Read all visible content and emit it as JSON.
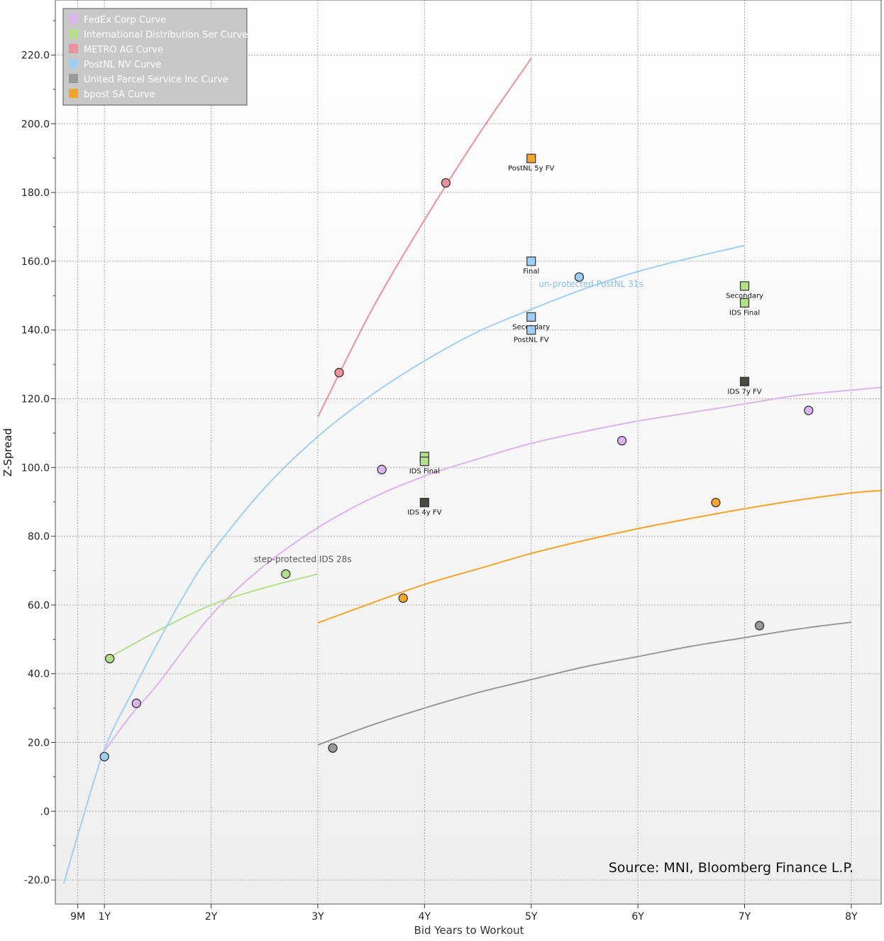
{
  "chart_data": {
    "type": "scatter",
    "xlabel": "Bid Years to Workout",
    "ylabel": "Z-Spread",
    "xlim": [
      0.54,
      8.28
    ],
    "ylim": [
      -27,
      236
    ],
    "x_ticks": [
      {
        "value": 0.75,
        "label": "9M"
      },
      {
        "value": 1,
        "label": "1Y"
      },
      {
        "value": 2,
        "label": "2Y"
      },
      {
        "value": 3,
        "label": "3Y"
      },
      {
        "value": 4,
        "label": "4Y"
      },
      {
        "value": 5,
        "label": "5Y"
      },
      {
        "value": 6,
        "label": "6Y"
      },
      {
        "value": 7,
        "label": "7Y"
      },
      {
        "value": 8,
        "label": "8Y"
      }
    ],
    "y_ticks": [
      {
        "value": -20,
        "label": "-20.0"
      },
      {
        "value": 0,
        "label": ".0"
      },
      {
        "value": 20,
        "label": "20.0"
      },
      {
        "value": 40,
        "label": "40.0"
      },
      {
        "value": 60,
        "label": "60.0"
      },
      {
        "value": 80,
        "label": "80.0"
      },
      {
        "value": 100,
        "label": "100.0"
      },
      {
        "value": 120,
        "label": "120.0"
      },
      {
        "value": 140,
        "label": "140.0"
      },
      {
        "value": 160,
        "label": "160.0"
      },
      {
        "value": 180,
        "label": "180.0"
      },
      {
        "value": 200,
        "label": "200.0"
      },
      {
        "value": 220,
        "label": "220.0"
      }
    ],
    "legend_position": "top-left",
    "series": [
      {
        "name": "FedEx Corp Curve",
        "color": "#dcb4f0",
        "points": [
          [
            1.3,
            31.4
          ],
          [
            3.6,
            99.4
          ],
          [
            5.85,
            107.8
          ],
          [
            7.6,
            116.6
          ]
        ],
        "curve": [
          [
            1.0,
            17.5
          ],
          [
            1.25,
            28
          ],
          [
            1.5,
            37
          ],
          [
            2.0,
            57
          ],
          [
            2.5,
            71.5
          ],
          [
            3.0,
            82.5
          ],
          [
            3.5,
            91
          ],
          [
            4.0,
            97.5
          ],
          [
            4.5,
            102.5
          ],
          [
            5.0,
            107
          ],
          [
            5.5,
            110.5
          ],
          [
            6.0,
            113.5
          ],
          [
            6.5,
            116
          ],
          [
            7.0,
            118.5
          ],
          [
            7.5,
            121
          ],
          [
            8.0,
            122.5
          ],
          [
            8.28,
            123.3
          ]
        ]
      },
      {
        "name": "International Distribution Ser Curve",
        "color": "#b4e08a",
        "points": [
          [
            1.05,
            44.4
          ],
          [
            2.7,
            69.0
          ]
        ],
        "curve": [
          [
            1.05,
            44.8
          ],
          [
            1.5,
            52.5
          ],
          [
            2.0,
            60
          ],
          [
            2.5,
            65
          ],
          [
            3.0,
            69
          ]
        ]
      },
      {
        "name": "METRO AG Curve",
        "color": "#f0909a",
        "points": [
          [
            3.2,
            127.6
          ],
          [
            4.2,
            182.8
          ]
        ],
        "curve": [
          [
            3.0,
            114.7
          ],
          [
            3.5,
            145.5
          ],
          [
            4.0,
            172
          ],
          [
            4.5,
            196.5
          ],
          [
            5.0,
            219
          ]
        ]
      },
      {
        "name": "PostNL NV Curve",
        "color": "#a0cff5",
        "points": [
          [
            1.0,
            15.9
          ],
          [
            5.45,
            155.4
          ]
        ],
        "curve": [
          [
            0.62,
            -21
          ],
          [
            0.75,
            -7
          ],
          [
            1.0,
            18
          ],
          [
            1.25,
            34
          ],
          [
            1.5,
            49
          ],
          [
            1.75,
            63
          ],
          [
            2.0,
            75
          ],
          [
            2.5,
            94
          ],
          [
            3.0,
            109
          ],
          [
            3.5,
            121
          ],
          [
            4.0,
            131
          ],
          [
            4.5,
            139.5
          ],
          [
            5.0,
            146
          ],
          [
            5.5,
            152
          ],
          [
            6.0,
            157
          ],
          [
            6.5,
            161
          ],
          [
            7.0,
            164.6
          ]
        ]
      },
      {
        "name": "United Parcel Service Inc Curve",
        "color": "#999999",
        "points": [
          [
            3.14,
            18.4
          ],
          [
            7.14,
            54.0
          ]
        ],
        "curve": [
          [
            3.0,
            19.3
          ],
          [
            3.5,
            25
          ],
          [
            4.0,
            30
          ],
          [
            4.5,
            34.5
          ],
          [
            5.0,
            38.3
          ],
          [
            5.5,
            42
          ],
          [
            6.0,
            45
          ],
          [
            6.5,
            48
          ],
          [
            7.0,
            50.5
          ],
          [
            7.5,
            53
          ],
          [
            8.0,
            55
          ]
        ]
      },
      {
        "name": "bpost SA Curve",
        "color": "#f7a42a",
        "points": [
          [
            3.8,
            62.0
          ],
          [
            6.73,
            89.8
          ]
        ],
        "curve": [
          [
            3.0,
            54.8
          ],
          [
            3.5,
            60.5
          ],
          [
            4.0,
            66
          ],
          [
            4.5,
            70.5
          ],
          [
            5.0,
            75
          ],
          [
            5.5,
            78.8
          ],
          [
            6.0,
            82.2
          ],
          [
            6.5,
            85.2
          ],
          [
            7.0,
            88
          ],
          [
            7.5,
            90.5
          ],
          [
            8.0,
            92.6
          ],
          [
            8.28,
            93.3
          ]
        ]
      }
    ],
    "markers": [
      {
        "x": 5.0,
        "y": 189.9,
        "fill": "#f7a42a",
        "label": "PostNL 5y FV"
      },
      {
        "x": 5.0,
        "y": 160.0,
        "fill": "#a0cff5",
        "label": "Final"
      },
      {
        "x": 5.0,
        "y": 143.8,
        "fill": "#a0cff5",
        "label": "Secondary"
      },
      {
        "x": 5.0,
        "y": 140.0,
        "fill": "#a0cff5",
        "label": "PostNL FV"
      },
      {
        "x": 7.0,
        "y": 152.8,
        "fill": "#b4e08a",
        "label": "Secondary"
      },
      {
        "x": 7.0,
        "y": 147.9,
        "fill": "#b4e08a",
        "label": "IDS Final"
      },
      {
        "x": 7.0,
        "y": 125.0,
        "fill": "#4a4a42",
        "label": "IDS 7y FV"
      },
      {
        "x": 4.0,
        "y": 103.2,
        "fill": "#b4e08a",
        "label": ""
      },
      {
        "x": 4.0,
        "y": 101.8,
        "fill": "#b4e08a",
        "label": "IDS Final"
      },
      {
        "x": 4.0,
        "y": 89.8,
        "fill": "#4a4a42",
        "label": "IDS 4y FV"
      }
    ],
    "annotations": [
      {
        "text": "un-protected PostNL 31s",
        "x": 5.07,
        "y": 152.5,
        "color": "#88bfe8"
      },
      {
        "text": "step-protected IDS 28s",
        "x": 2.4,
        "y": 72.5,
        "color": "#555555"
      }
    ],
    "source_text": "Source: MNI, Bloomberg Finance L.P."
  }
}
